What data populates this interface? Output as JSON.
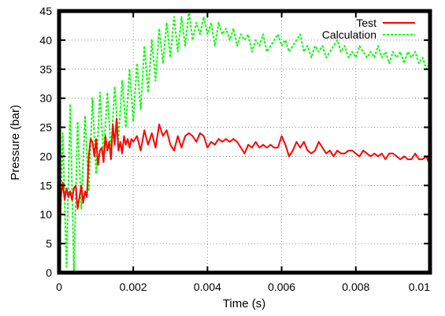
{
  "chart_data": {
    "type": "line",
    "title": "",
    "xlabel": "Time (s)",
    "ylabel": "Pressure (bar)",
    "xlim": [
      0,
      0.01
    ],
    "ylim": [
      0,
      45
    ],
    "grid": true,
    "grid_style": "dotted",
    "legend_position": "top-right",
    "x_ticks": [
      {
        "value": 0,
        "label": "0"
      },
      {
        "value": 0.002,
        "label": "0.002"
      },
      {
        "value": 0.004,
        "label": "0.004"
      },
      {
        "value": 0.006,
        "label": "0.006"
      },
      {
        "value": 0.008,
        "label": "0.008"
      },
      {
        "value": 0.01,
        "label": "0.01"
      }
    ],
    "y_ticks": [
      {
        "value": 0,
        "label": "0"
      },
      {
        "value": 5,
        "label": "5"
      },
      {
        "value": 10,
        "label": "10"
      },
      {
        "value": 15,
        "label": "15"
      },
      {
        "value": 20,
        "label": "20"
      },
      {
        "value": 25,
        "label": "25"
      },
      {
        "value": 30,
        "label": "30"
      },
      {
        "value": 35,
        "label": "35"
      },
      {
        "value": 40,
        "label": "40"
      },
      {
        "value": 45,
        "label": "45"
      }
    ],
    "series": [
      {
        "name": "Test",
        "color": "#ff0000",
        "dash": "solid",
        "x": [
          0,
          5e-05,
          0.0001,
          0.00015,
          0.0002,
          0.00025,
          0.0003,
          0.00035,
          0.0004,
          0.00045,
          0.0005,
          0.00055,
          0.0006,
          0.00065,
          0.0007,
          0.00075,
          0.0008,
          0.00085,
          0.0009,
          0.00095,
          0.001,
          0.00105,
          0.0011,
          0.00115,
          0.0012,
          0.00125,
          0.0013,
          0.00135,
          0.0014,
          0.00145,
          0.0015,
          0.00155,
          0.0016,
          0.00165,
          0.0017,
          0.00175,
          0.0018,
          0.00185,
          0.0019,
          0.00195,
          0.002,
          0.0021,
          0.0022,
          0.0023,
          0.0024,
          0.0025,
          0.0026,
          0.0027,
          0.0028,
          0.0029,
          0.003,
          0.0031,
          0.0032,
          0.0033,
          0.0034,
          0.0035,
          0.0036,
          0.0037,
          0.0038,
          0.0039,
          0.004,
          0.0041,
          0.0042,
          0.0043,
          0.0044,
          0.0045,
          0.0046,
          0.0047,
          0.0048,
          0.0049,
          0.005,
          0.0051,
          0.0052,
          0.0053,
          0.0054,
          0.0055,
          0.0056,
          0.0057,
          0.0058,
          0.0059,
          0.006,
          0.0061,
          0.0062,
          0.0063,
          0.0064,
          0.0065,
          0.0066,
          0.0067,
          0.0068,
          0.0069,
          0.007,
          0.0071,
          0.0072,
          0.0073,
          0.0074,
          0.0075,
          0.0076,
          0.0077,
          0.0078,
          0.0079,
          0.008,
          0.0081,
          0.0082,
          0.0083,
          0.0084,
          0.0085,
          0.0086,
          0.0087,
          0.0088,
          0.0089,
          0.009,
          0.0091,
          0.0092,
          0.0093,
          0.0094,
          0.0095,
          0.0096,
          0.0097,
          0.0098,
          0.0099,
          0.01
        ],
        "y": [
          0,
          13,
          15.5,
          12.5,
          14.5,
          13,
          14,
          12.5,
          14.5,
          15,
          11,
          13,
          15,
          12,
          14,
          13,
          20,
          23,
          22.5,
          20,
          23,
          18.5,
          21,
          21.5,
          19,
          23.5,
          21,
          22.5,
          19.5,
          25.5,
          22,
          26.5,
          21,
          22.5,
          20.5,
          23.5,
          22,
          23,
          21.5,
          23,
          22.5,
          23.5,
          21,
          24.5,
          22,
          24,
          21.5,
          25.5,
          23.5,
          24.5,
          22,
          21,
          23.5,
          21.5,
          23.5,
          24,
          23.5,
          22.5,
          24,
          23.5,
          21.5,
          22.5,
          22,
          23,
          22.5,
          23,
          22.5,
          23,
          22.5,
          21.5,
          20.5,
          22,
          21.5,
          22.5,
          21.5,
          22,
          21.5,
          22,
          21.5,
          21.5,
          23.5,
          22,
          20,
          21,
          22.5,
          21.5,
          22.5,
          21,
          20.5,
          21,
          22.5,
          21.5,
          20.5,
          21,
          20,
          21,
          20.5,
          20.5,
          21,
          21,
          20.5,
          20,
          21,
          20.5,
          20,
          20.5,
          20,
          20.5,
          19.5,
          20.5,
          20.5,
          20,
          19.5,
          20,
          19.5,
          19.5,
          20.5,
          19.5,
          19.5,
          20,
          18.5
        ]
      },
      {
        "name": "Calculation",
        "color": "#00ff00",
        "dash": "dashed",
        "x": [
          0,
          0.0001,
          0.0002,
          0.0003,
          0.0004,
          0.0005,
          0.0006,
          0.0007,
          0.0008,
          0.0009,
          0.001,
          0.0011,
          0.0012,
          0.0013,
          0.0014,
          0.0015,
          0.0016,
          0.0017,
          0.0018,
          0.0019,
          0.002,
          0.0021,
          0.0022,
          0.0023,
          0.0024,
          0.0025,
          0.0026,
          0.0027,
          0.0028,
          0.0029,
          0.003,
          0.0031,
          0.0032,
          0.0033,
          0.0034,
          0.0035,
          0.0036,
          0.0037,
          0.0038,
          0.0039,
          0.004,
          0.0041,
          0.0042,
          0.0043,
          0.0044,
          0.0045,
          0.0046,
          0.0047,
          0.0048,
          0.0049,
          0.005,
          0.0051,
          0.0052,
          0.0053,
          0.0054,
          0.0055,
          0.0056,
          0.0057,
          0.0058,
          0.0059,
          0.006,
          0.0061,
          0.0062,
          0.0063,
          0.0064,
          0.0065,
          0.0066,
          0.0067,
          0.0068,
          0.0069,
          0.007,
          0.0071,
          0.0072,
          0.0073,
          0.0074,
          0.0075,
          0.0076,
          0.0077,
          0.0078,
          0.0079,
          0.008,
          0.0081,
          0.0082,
          0.0083,
          0.0084,
          0.0085,
          0.0086,
          0.0087,
          0.0088,
          0.0089,
          0.009,
          0.0091,
          0.0092,
          0.0093,
          0.0094,
          0.0095,
          0.0096,
          0.0097,
          0.0098,
          0.0099,
          0.01
        ],
        "y": [
          0,
          24,
          1,
          29,
          0,
          26,
          11,
          27,
          14,
          30,
          17,
          31,
          20,
          31,
          21,
          32,
          23,
          33,
          25,
          35,
          26,
          36,
          28,
          39,
          31,
          40,
          33,
          42,
          36,
          43,
          37,
          44,
          38,
          44,
          39,
          45,
          40,
          43,
          41,
          44,
          41,
          43,
          39,
          43,
          41,
          42,
          40,
          42,
          39,
          41,
          40,
          41,
          38,
          40,
          39,
          41,
          38,
          39,
          40,
          41,
          39,
          40,
          38,
          39,
          40,
          41,
          38,
          39,
          37,
          39,
          38,
          39,
          37,
          38,
          39,
          40,
          38,
          39,
          37,
          38,
          37,
          39,
          38,
          37,
          38,
          37,
          39,
          37,
          38,
          36,
          38,
          37,
          38,
          36,
          38,
          37,
          38,
          36,
          37,
          35,
          36
        ]
      }
    ]
  }
}
